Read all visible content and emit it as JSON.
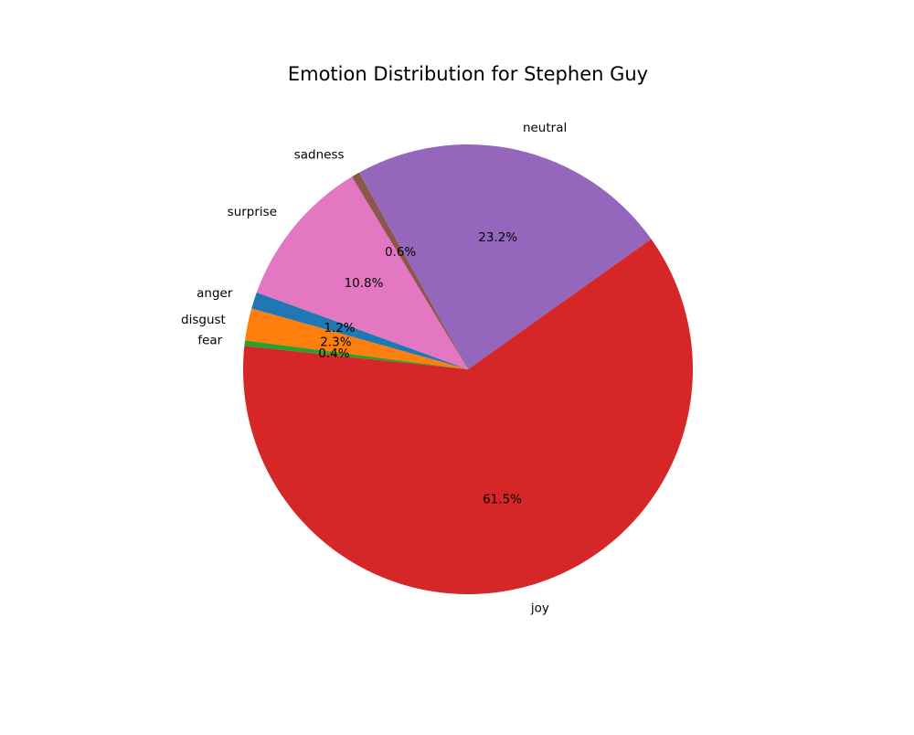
{
  "chart_data": {
    "type": "pie",
    "title": "Emotion Distribution for Stephen Guy",
    "start_angle_deg": 160,
    "direction": "counterclockwise",
    "slices": [
      {
        "label": "anger",
        "value": 1.2,
        "pct_label": "1.2%",
        "color": "#1f77b4"
      },
      {
        "label": "disgust",
        "value": 2.3,
        "pct_label": "2.3%",
        "color": "#ff7f0e"
      },
      {
        "label": "fear",
        "value": 0.4,
        "pct_label": "0.4%",
        "color": "#2ca02c"
      },
      {
        "label": "joy",
        "value": 61.5,
        "pct_label": "61.5%",
        "color": "#d62728"
      },
      {
        "label": "neutral",
        "value": 23.2,
        "pct_label": "23.2%",
        "color": "#9467bd"
      },
      {
        "label": "sadness",
        "value": 0.6,
        "pct_label": "0.6%",
        "color": "#8c564b"
      },
      {
        "label": "surprise",
        "value": 10.8,
        "pct_label": "10.8%",
        "color": "#e377c2"
      }
    ]
  }
}
